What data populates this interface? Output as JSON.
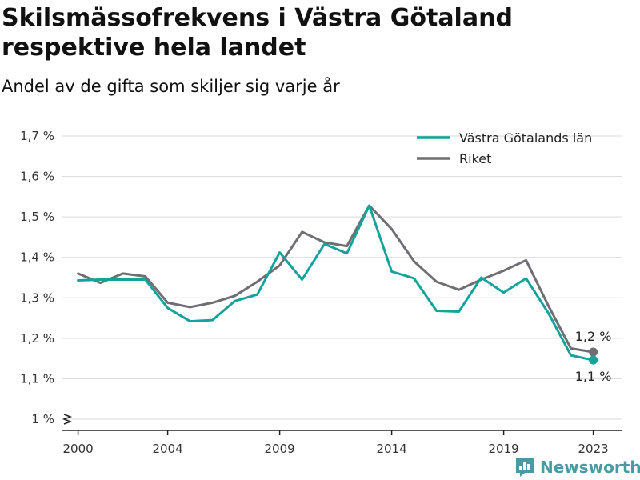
{
  "chart_data": {
    "type": "line",
    "title": "Skilsmässofrekvens i Västra Götaland respektive hela landet",
    "subtitle": "Andel av de gifta som skiljer sig varje år",
    "x": [
      2000,
      2001,
      2002,
      2003,
      2004,
      2005,
      2006,
      2007,
      2008,
      2009,
      2010,
      2011,
      2012,
      2013,
      2014,
      2015,
      2016,
      2017,
      2018,
      2019,
      2020,
      2021,
      2022,
      2023
    ],
    "series": [
      {
        "name": "Västra Götalands län",
        "color": "#14a39a",
        "values": [
          1.343,
          1.345,
          1.345,
          1.345,
          1.275,
          1.242,
          1.245,
          1.292,
          1.308,
          1.412,
          1.345,
          1.433,
          1.41,
          1.528,
          1.365,
          1.348,
          1.268,
          1.266,
          1.35,
          1.313,
          1.348,
          1.262,
          1.158,
          1.146
        ],
        "end_label": "1,1 %"
      },
      {
        "name": "Riket",
        "color": "#6e6e73",
        "values": [
          1.36,
          1.337,
          1.36,
          1.353,
          1.288,
          1.277,
          1.288,
          1.305,
          1.34,
          1.38,
          1.463,
          1.437,
          1.428,
          1.528,
          1.47,
          1.39,
          1.34,
          1.32,
          1.345,
          1.367,
          1.393,
          1.28,
          1.175,
          1.166
        ],
        "end_label": "1,2 %"
      }
    ],
    "y_ticks": [
      1.0,
      1.1,
      1.2,
      1.3,
      1.4,
      1.5,
      1.6,
      1.7
    ],
    "y_tick_labels": [
      "1 %",
      "1,1 %",
      "1,2 %",
      "1,3 %",
      "1,4 %",
      "1,5 %",
      "1,6 %",
      "1,7 %"
    ],
    "x_ticks": [
      2000,
      2004,
      2009,
      2014,
      2019,
      2023
    ],
    "x_tick_labels": [
      "2000",
      "2004",
      "2009",
      "2014",
      "2019",
      "2023"
    ],
    "xlim": [
      1999.3,
      2024.3
    ],
    "ylim": [
      1.0,
      1.7
    ],
    "grid": true,
    "legend_position": "top-right"
  },
  "brand": {
    "name": "Newsworthy",
    "color": "#4a9aa3"
  }
}
